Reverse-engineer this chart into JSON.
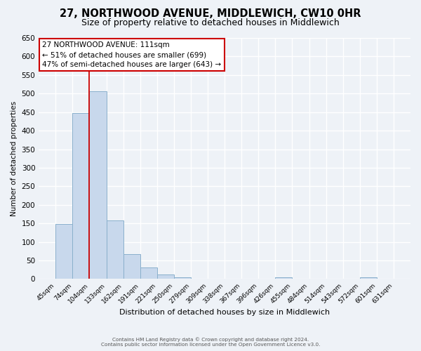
{
  "title": "27, NORTHWOOD AVENUE, MIDDLEWICH, CW10 0HR",
  "subtitle": "Size of property relative to detached houses in Middlewich",
  "bar_values": [
    148,
    448,
    507,
    158,
    67,
    32,
    12,
    5,
    0,
    0,
    0,
    0,
    0,
    5,
    0,
    0,
    0,
    0,
    5,
    0
  ],
  "x_labels": [
    "45sqm",
    "74sqm",
    "104sqm",
    "133sqm",
    "162sqm",
    "191sqm",
    "221sqm",
    "250sqm",
    "279sqm",
    "309sqm",
    "338sqm",
    "367sqm",
    "396sqm",
    "426sqm",
    "455sqm",
    "484sqm",
    "514sqm",
    "543sqm",
    "572sqm",
    "601sqm",
    "631sqm"
  ],
  "bar_color": "#c8d8ec",
  "bar_edge_color": "#8ab0cc",
  "ylabel": "Number of detached properties",
  "xlabel": "Distribution of detached houses by size in Middlewich",
  "ylim": [
    0,
    650
  ],
  "yticks": [
    0,
    50,
    100,
    150,
    200,
    250,
    300,
    350,
    400,
    450,
    500,
    550,
    600,
    650
  ],
  "vline_x": 2,
  "vline_color": "#cc0000",
  "annotation_title": "27 NORTHWOOD AVENUE: 111sqm",
  "annotation_line1": "← 51% of detached houses are smaller (699)",
  "annotation_line2": "47% of semi-detached houses are larger (643) →",
  "footer_line1": "Contains HM Land Registry data © Crown copyright and database right 2024.",
  "footer_line2": "Contains public sector information licensed under the Open Government Licence v3.0.",
  "background_color": "#eef2f7",
  "grid_color": "#ffffff",
  "title_fontsize": 10.5,
  "subtitle_fontsize": 9
}
